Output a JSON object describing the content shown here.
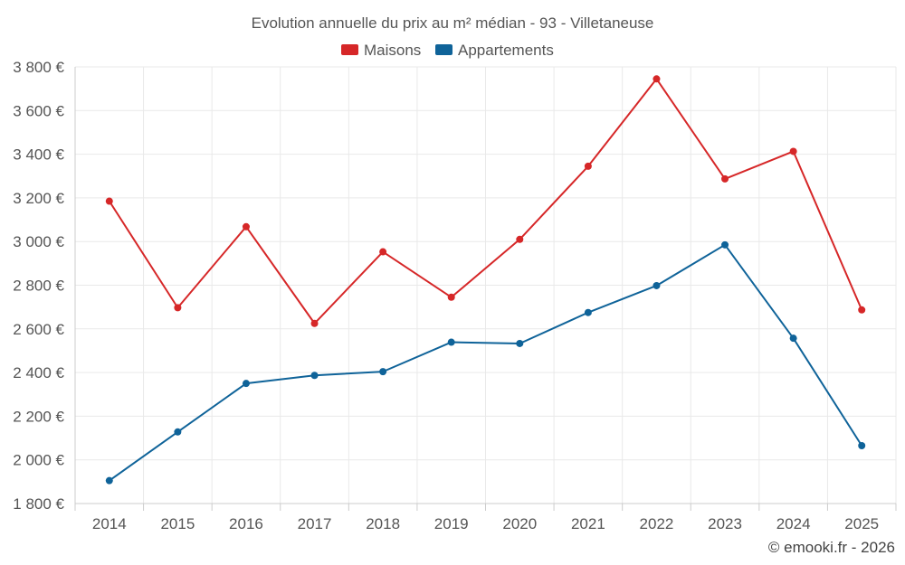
{
  "chart_data": {
    "type": "line",
    "title": "Evolution annuelle du prix au m² médian - 93 - Villetaneuse",
    "xlabel": "",
    "ylabel": "",
    "categories": [
      "2014",
      "2015",
      "2016",
      "2017",
      "2018",
      "2019",
      "2020",
      "2021",
      "2022",
      "2023",
      "2024",
      "2025"
    ],
    "ylim": [
      1800,
      3800
    ],
    "yticks": [
      1800,
      2000,
      2200,
      2400,
      2600,
      2800,
      3000,
      3200,
      3400,
      3600,
      3800
    ],
    "ytick_labels": [
      "1 800 €",
      "2 000 €",
      "2 200 €",
      "2 400 €",
      "2 600 €",
      "2 800 €",
      "3 000 €",
      "3 200 €",
      "3 400 €",
      "3 600 €",
      "3 800 €"
    ],
    "grid": true,
    "legend_position": "top-center",
    "series": [
      {
        "name": "Maisons",
        "color": "#d62728",
        "values": [
          3185,
          2697,
          3068,
          2625,
          2953,
          2745,
          3010,
          3345,
          3745,
          3287,
          3413,
          2687
        ]
      },
      {
        "name": "Appartements",
        "color": "#0f6399",
        "values": [
          1905,
          2128,
          2350,
          2387,
          2404,
          2539,
          2533,
          2675,
          2798,
          2985,
          2557,
          2065
        ]
      }
    ]
  },
  "credit": "© emooki.fr - 2026"
}
